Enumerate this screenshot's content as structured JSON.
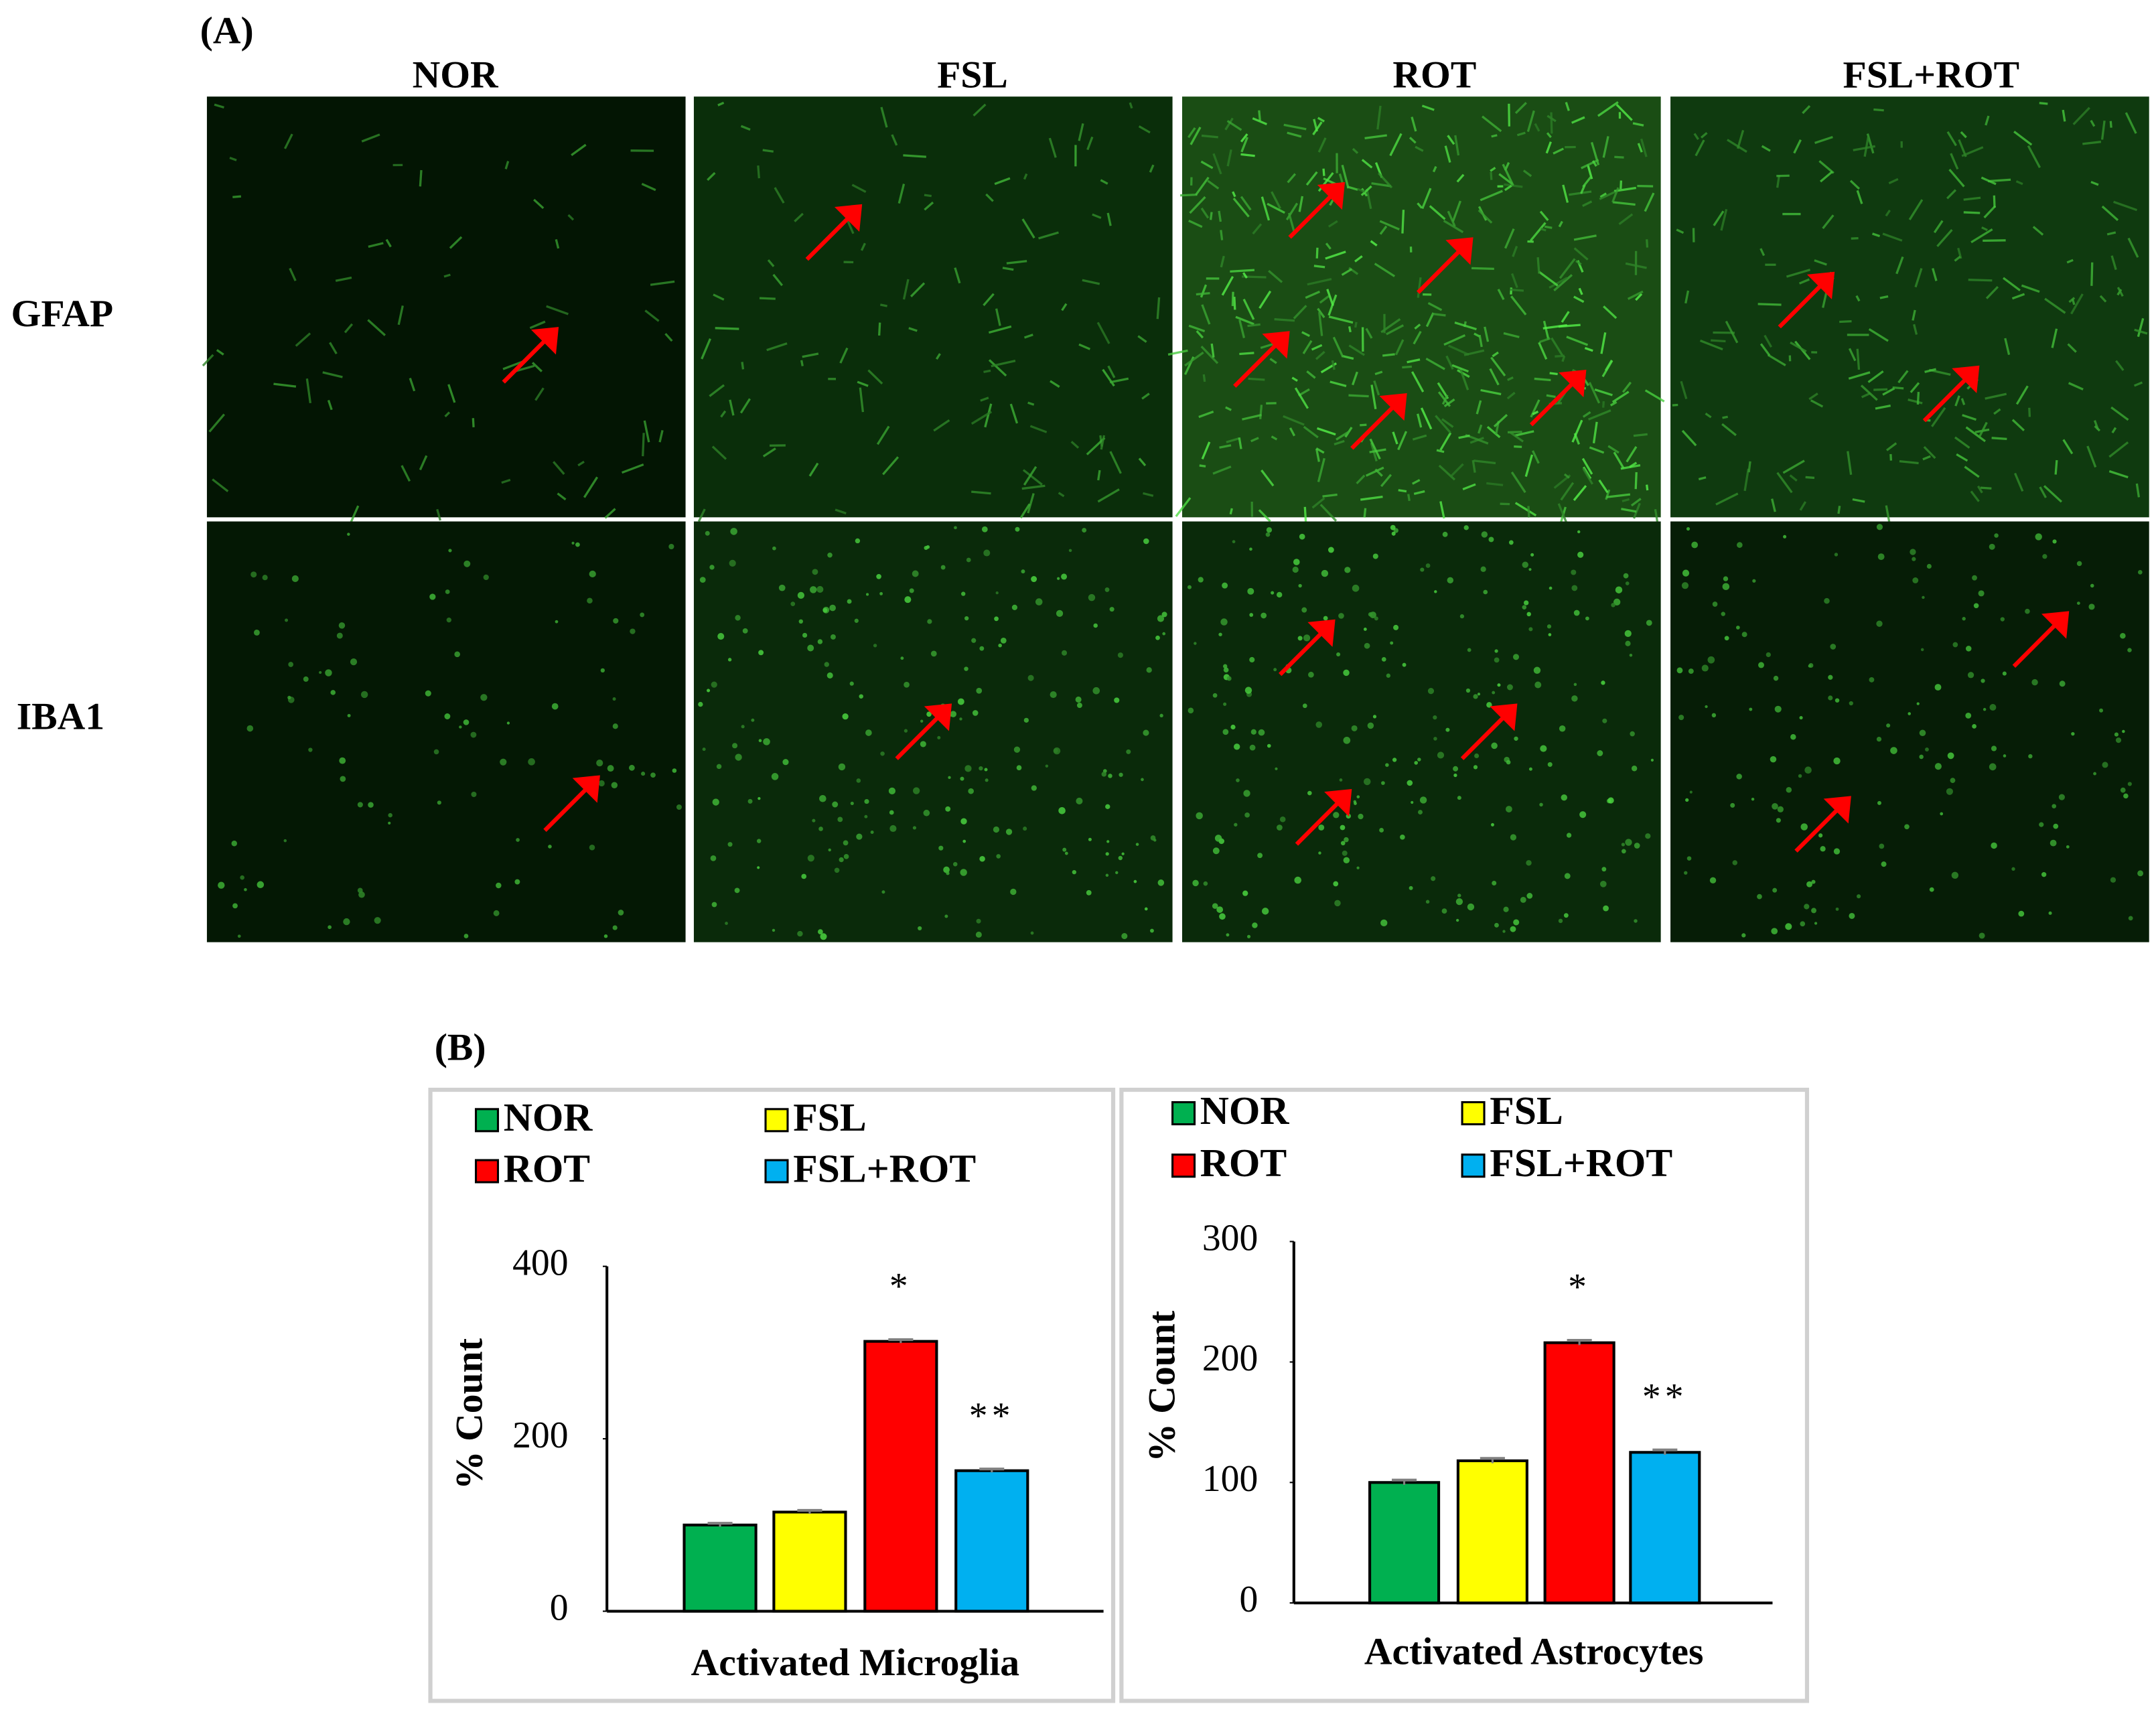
{
  "panel_a": {
    "label": "(A)",
    "columns": [
      "NOR",
      "FSL",
      "ROT",
      "FSL+ROT"
    ],
    "rows": [
      "GFAP",
      "IBA1"
    ]
  },
  "panel_b_label": "(B)",
  "chart_data": [
    {
      "type": "bar",
      "xlabel": "Activated Microglia",
      "ylabel": "% Count",
      "categories": [
        "NOR",
        "FSL",
        "ROT",
        "FSL+ROT"
      ],
      "values": [
        100,
        115,
        313,
        163
      ],
      "errors": [
        2,
        2,
        2,
        2
      ],
      "colors": [
        "#00b050",
        "#ffff00",
        "#ff0000",
        "#00b0f0"
      ],
      "ylim": [
        0,
        400
      ],
      "yticks": [
        0,
        200,
        400
      ],
      "annotations": [
        {
          "category": "ROT",
          "text": "*"
        },
        {
          "category": "FSL+ROT",
          "text": "**"
        }
      ],
      "legend": "top"
    },
    {
      "type": "bar",
      "xlabel": "Activated Astrocytes",
      "ylabel": "% Count",
      "categories": [
        "NOR",
        "FSL",
        "ROT",
        "FSL+ROT"
      ],
      "values": [
        100,
        118,
        216,
        125
      ],
      "errors": [
        2,
        2,
        2,
        2
      ],
      "colors": [
        "#00b050",
        "#ffff00",
        "#ff0000",
        "#00b0f0"
      ],
      "ylim": [
        0,
        300
      ],
      "yticks": [
        0,
        100,
        200,
        300
      ],
      "annotations": [
        {
          "category": "ROT",
          "text": "*"
        },
        {
          "category": "FSL+ROT",
          "text": "**"
        }
      ],
      "legend": "top"
    }
  ]
}
